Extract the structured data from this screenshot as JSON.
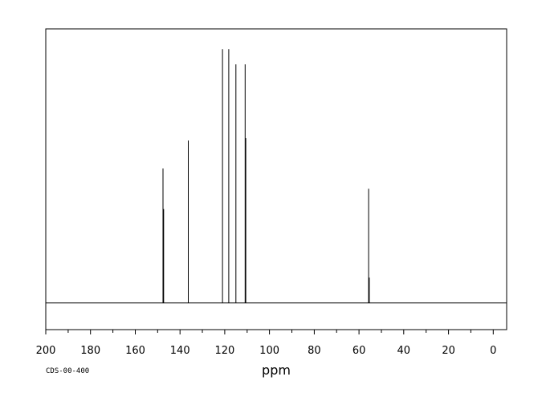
{
  "chart_data": {
    "type": "line",
    "title": "",
    "xlabel": "ppm",
    "ylabel": "",
    "code": "CDS-00-400",
    "xlim": [
      200,
      -6
    ],
    "ylim": [
      -0.105,
      1.08
    ],
    "grid": false,
    "legend": "none",
    "line_color": "#000000",
    "major_ticks": [
      200,
      180,
      160,
      140,
      120,
      100,
      80,
      60,
      40,
      20,
      0
    ],
    "minor_ticks": [
      190,
      170,
      150,
      130,
      110,
      90,
      70,
      50,
      30,
      10
    ],
    "peaks": [
      {
        "ppm": 147.6,
        "height": 0.53
      },
      {
        "ppm": 147.3,
        "height": 0.37
      },
      {
        "ppm": 136.3,
        "height": 0.64
      },
      {
        "ppm": 121.0,
        "height": 1.0
      },
      {
        "ppm": 118.2,
        "height": 1.0
      },
      {
        "ppm": 115.0,
        "height": 0.94
      },
      {
        "ppm": 110.9,
        "height": 0.94
      },
      {
        "ppm": 110.6,
        "height": 0.65
      },
      {
        "ppm": 55.7,
        "height": 0.45
      },
      {
        "ppm": 55.4,
        "height": 0.1
      }
    ]
  }
}
